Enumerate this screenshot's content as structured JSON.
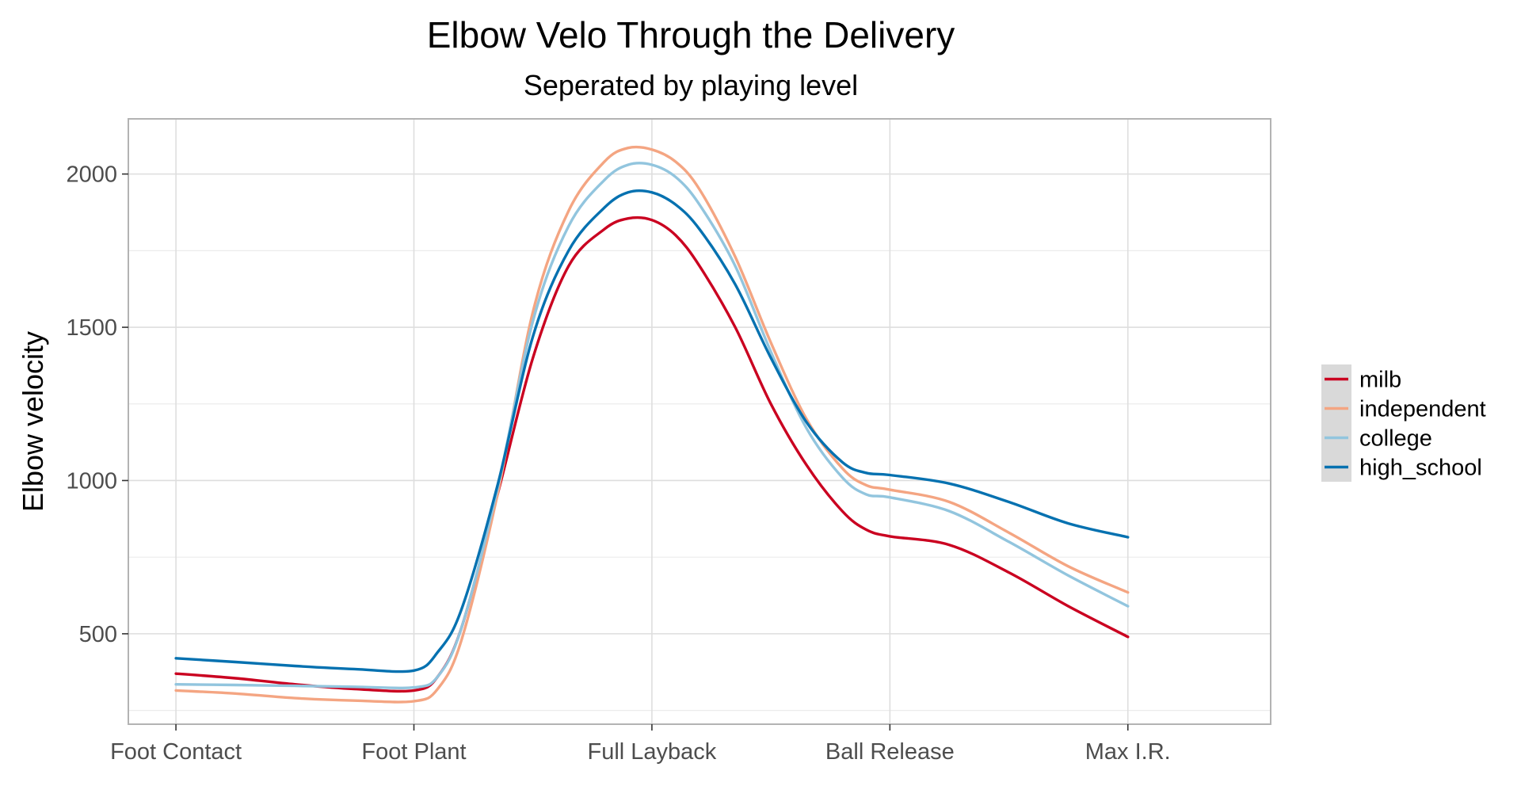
{
  "chart_data": {
    "type": "line",
    "title": "Elbow Velo Through the Delivery",
    "subtitle": "Seperated by playing level",
    "xlabel": "",
    "ylabel": "Elbow velocity",
    "categories": [
      "Foot Contact",
      "Foot Plant",
      "Full Layback",
      "Ball Release",
      "Max I.R."
    ],
    "x": [
      0,
      0.25,
      0.5,
      0.75,
      1,
      1.1,
      1.2,
      1.35,
      1.5,
      1.65,
      1.8,
      1.9,
      2,
      2.1,
      2.2,
      2.35,
      2.5,
      2.65,
      2.8,
      2.9,
      3,
      3.25,
      3.5,
      3.75,
      4
    ],
    "ylim": [
      205,
      2180
    ],
    "yticks": [
      500,
      1000,
      1500,
      2000
    ],
    "grid": true,
    "legend_position": "right",
    "series": [
      {
        "name": "milb",
        "color": "#ca0020",
        "values": [
          370,
          355,
          335,
          320,
          315,
          360,
          520,
          950,
          1400,
          1700,
          1820,
          1855,
          1850,
          1800,
          1700,
          1500,
          1250,
          1050,
          900,
          840,
          818,
          790,
          700,
          590,
          490
        ]
      },
      {
        "name": "independent",
        "color": "#f4a582",
        "values": [
          315,
          305,
          290,
          282,
          280,
          320,
          480,
          950,
          1550,
          1880,
          2040,
          2085,
          2080,
          2040,
          1950,
          1730,
          1450,
          1200,
          1040,
          985,
          970,
          930,
          830,
          720,
          635
        ]
      },
      {
        "name": "college",
        "color": "#92c5de",
        "values": [
          335,
          333,
          330,
          327,
          325,
          360,
          520,
          970,
          1520,
          1830,
          1980,
          2030,
          2030,
          1990,
          1900,
          1700,
          1420,
          1170,
          1010,
          955,
          945,
          900,
          800,
          690,
          590
        ]
      },
      {
        "name": "high_school",
        "color": "#0571b0",
        "values": [
          420,
          408,
          395,
          385,
          380,
          440,
          580,
          980,
          1470,
          1750,
          1890,
          1940,
          1940,
          1900,
          1820,
          1640,
          1400,
          1190,
          1060,
          1025,
          1018,
          990,
          930,
          860,
          815
        ]
      }
    ]
  }
}
